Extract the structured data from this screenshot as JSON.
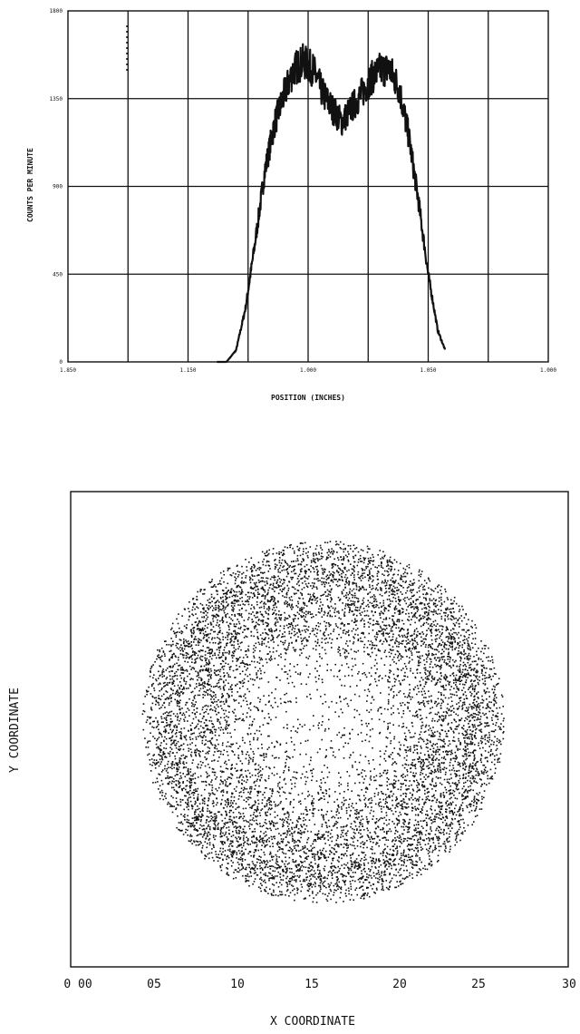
{
  "chart_data": [
    {
      "type": "line",
      "title": "",
      "xlabel": "POSITION (INCHES)",
      "ylabel": "COUNTS PER MINUTE",
      "x_tick_labels": [
        "1.850",
        "1.150",
        "1.000",
        "1.050",
        "1.000"
      ],
      "y_tick_labels": [
        "0",
        "450",
        "900",
        "1350",
        "1800"
      ],
      "grid": true,
      "xlim": [
        0,
        2.0
      ],
      "ylim": [
        0,
        1800
      ],
      "series": [
        {
          "x": [
            0.0,
            0.62,
            0.66,
            0.7,
            0.74,
            0.78,
            0.82,
            0.86,
            0.9,
            0.94,
            0.98,
            1.02,
            1.06,
            1.1,
            1.14,
            1.18,
            1.22,
            1.26,
            1.3,
            1.34,
            1.38,
            1.42,
            1.46,
            1.5,
            1.54,
            1.58,
            1.62,
            1.66,
            1.7,
            1.74,
            1.78,
            1.82,
            1.86,
            1.9,
            1.95,
            2.0
          ],
          "y": [
            0,
            0,
            0,
            60,
            280,
            620,
            980,
            1220,
            1370,
            1500,
            1540,
            1500,
            1380,
            1300,
            1230,
            1300,
            1370,
            1450,
            1500,
            1500,
            1400,
            1150,
            820,
            450,
            160,
            30,
            0,
            0,
            0,
            0,
            0,
            0,
            0,
            0,
            0,
            0
          ]
        }
      ]
    },
    {
      "type": "scatter",
      "title": "",
      "xlabel": "X COORDINATE",
      "ylabel": "Y COORDINATE",
      "x_tick_labels": [
        "0 00",
        "05",
        "10",
        "15",
        "20",
        "25",
        "30"
      ],
      "xlim": [
        0,
        30
      ],
      "ylim": [
        0,
        30
      ],
      "grid": false,
      "distribution": {
        "shape": "annulus",
        "center": [
          15.2,
          15.5
        ],
        "outer_radius": 10.7,
        "ring_radius": 8.0,
        "ring_width": 3.4,
        "point_count": 9000
      }
    }
  ]
}
